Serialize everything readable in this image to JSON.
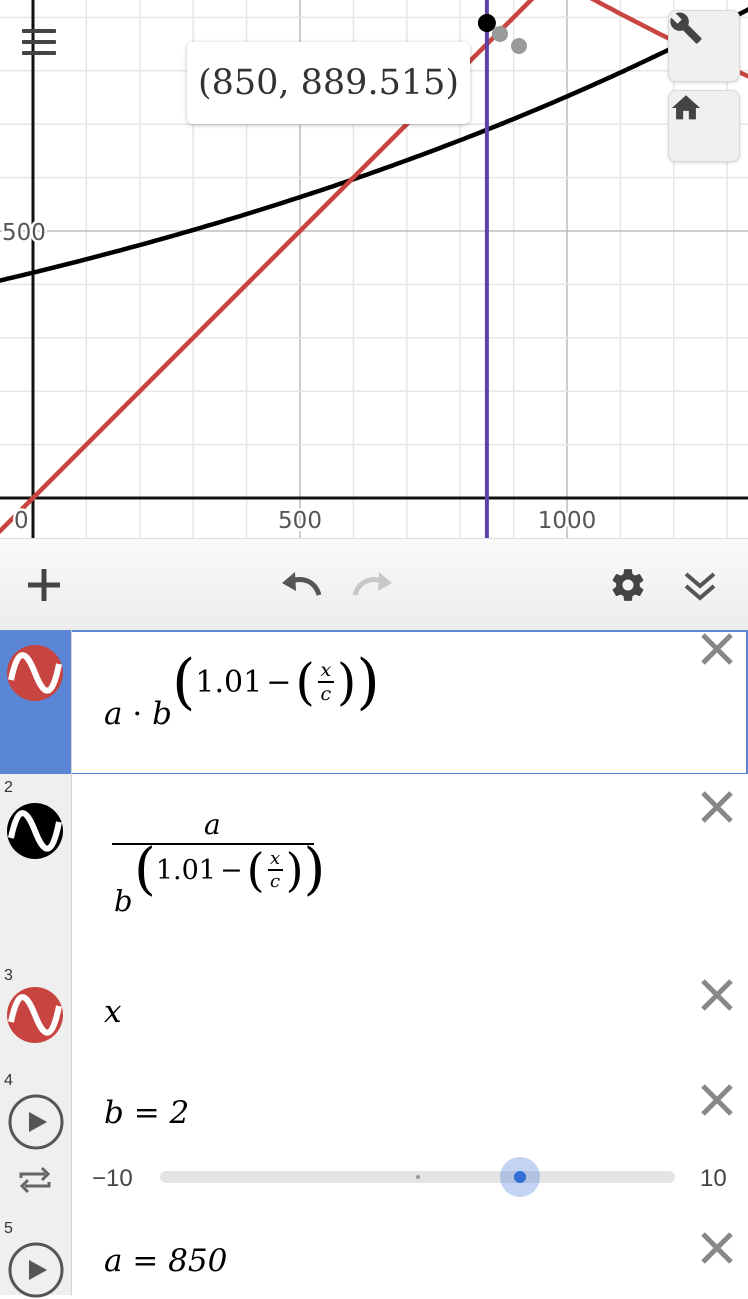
{
  "graph": {
    "x_ticks": [
      "0",
      "500",
      "1000"
    ],
    "y_ticks": [
      "500"
    ],
    "tooltip": "(850, 889.515)",
    "colors": {
      "red": "#c74440",
      "black": "#000000",
      "purple": "#6042a6",
      "grid": "#e6e6e6"
    }
  },
  "topbar": {
    "menu_icon": "hamburger-icon",
    "wrench_icon": "wrench-icon",
    "home_icon": "home-icon"
  },
  "toolbar": {
    "add_icon": "plus-icon",
    "undo_icon": "undo-icon",
    "redo_icon": "redo-icon",
    "settings_icon": "gear-icon",
    "collapse_icon": "chevron-double-down-icon"
  },
  "expressions": [
    {
      "id": "1",
      "number": "",
      "color": "#c74440",
      "parts": {
        "a": "a",
        "dot": "·",
        "b": "b",
        "k": "1.01",
        "minus": "−",
        "x": "x",
        "c": "c"
      }
    },
    {
      "id": "2",
      "number": "2",
      "color": "#000000",
      "parts": {
        "a": "a",
        "b": "b",
        "k": "1.01",
        "minus": "−",
        "x": "x",
        "c": "c"
      }
    },
    {
      "id": "3",
      "number": "3",
      "color": "#c74440",
      "latex": "x"
    },
    {
      "id": "4",
      "number": "4",
      "latex": "b = 2",
      "slider": {
        "min": "−10",
        "max": "10",
        "value": 2
      }
    },
    {
      "id": "5",
      "number": "5",
      "latex": "a = 850"
    }
  ]
}
